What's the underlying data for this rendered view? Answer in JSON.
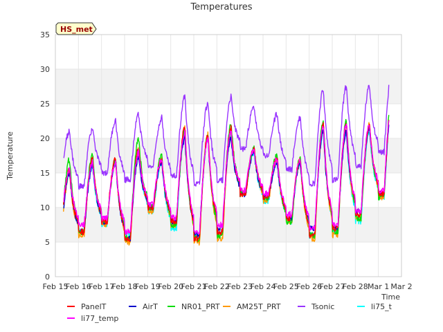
{
  "chart_data": {
    "type": "line",
    "title": "Temperatures",
    "xlabel": "Time",
    "ylabel": "Temperature",
    "badge": "HS_met",
    "xlim": [
      "2025-02-15",
      "2025-03-02"
    ],
    "ylim": [
      0,
      35
    ],
    "xticks": [
      "Feb 15",
      "Feb 16",
      "Feb 17",
      "Feb 18",
      "Feb 19",
      "Feb 20",
      "Feb 21",
      "Feb 22",
      "Feb 23",
      "Feb 24",
      "Feb 25",
      "Feb 26",
      "Feb 27",
      "Feb 28",
      "Mar 1",
      "Mar 2"
    ],
    "yticks": [
      0,
      5,
      10,
      15,
      20,
      25,
      30,
      35
    ],
    "grid_bands": true,
    "legend_position": "bottom",
    "series": [
      {
        "name": "PanelT",
        "color": "#ff0000",
        "daily_max": [
          15.5,
          17.0,
          17.0,
          18.5,
          17.0,
          21.5,
          20.5,
          21.5,
          18.5,
          17.0,
          17.0,
          22.0,
          22.0,
          22.0,
          26.0
        ],
        "daily_min": [
          6.5,
          6.5,
          8.0,
          5.5,
          10.0,
          8.0,
          5.5,
          6.5,
          12.0,
          11.5,
          8.5,
          6.0,
          7.0,
          9.0,
          12.0
        ]
      },
      {
        "name": "AirT",
        "color": "#0000cc",
        "daily_max": [
          15.0,
          16.0,
          16.5,
          17.5,
          16.5,
          20.0,
          20.0,
          20.0,
          18.0,
          16.5,
          16.5,
          21.0,
          21.0,
          21.5,
          25.0
        ],
        "daily_min": [
          6.0,
          6.5,
          8.0,
          5.5,
          10.0,
          8.0,
          6.0,
          7.0,
          12.0,
          11.5,
          8.5,
          7.0,
          7.0,
          9.5,
          12.0
        ]
      },
      {
        "name": "NR01_PRT",
        "color": "#00dd00",
        "daily_max": [
          17.0,
          17.5,
          17.0,
          20.0,
          17.5,
          21.0,
          20.5,
          22.0,
          18.5,
          17.5,
          17.0,
          22.5,
          22.5,
          22.0,
          27.0
        ],
        "daily_min": [
          5.5,
          6.5,
          8.0,
          5.5,
          10.0,
          7.5,
          5.5,
          6.0,
          12.0,
          11.5,
          8.0,
          6.0,
          6.5,
          8.5,
          11.5
        ]
      },
      {
        "name": "AM25T_PRT",
        "color": "#ff9900",
        "daily_max": [
          15.0,
          17.0,
          17.0,
          18.5,
          17.0,
          21.5,
          20.5,
          21.0,
          18.5,
          17.0,
          17.0,
          22.0,
          22.0,
          22.0,
          26.0
        ],
        "daily_min": [
          5.0,
          6.0,
          7.5,
          5.0,
          9.5,
          7.5,
          5.0,
          5.5,
          12.0,
          11.0,
          8.0,
          5.5,
          6.0,
          8.5,
          11.5
        ]
      },
      {
        "name": "Tsonic",
        "color": "#9933ff",
        "daily_max": [
          21.0,
          21.5,
          22.5,
          23.5,
          23.0,
          26.0,
          25.0,
          26.0,
          24.5,
          23.5,
          23.0,
          27.0,
          27.5,
          27.5,
          30.5
        ],
        "daily_min": [
          14.0,
          13.0,
          15.0,
          14.0,
          16.0,
          14.5,
          13.5,
          14.0,
          18.5,
          17.5,
          15.5,
          13.5,
          14.0,
          16.0,
          18.0
        ]
      },
      {
        "name": "li75_t",
        "color": "#00ffff",
        "daily_max": [
          15.0,
          16.0,
          16.5,
          17.5,
          16.5,
          20.5,
          20.0,
          20.5,
          18.0,
          16.5,
          16.5,
          21.0,
          21.0,
          21.0,
          25.0
        ],
        "daily_min": [
          5.5,
          6.5,
          7.5,
          6.0,
          9.5,
          7.0,
          6.0,
          6.5,
          12.0,
          11.0,
          8.0,
          6.0,
          6.5,
          8.0,
          11.5
        ]
      },
      {
        "name": "li77_temp",
        "color": "#ff00ff",
        "daily_max": [
          15.5,
          16.5,
          16.5,
          18.0,
          17.0,
          21.0,
          20.0,
          21.0,
          18.5,
          17.0,
          17.0,
          22.0,
          22.0,
          22.0,
          26.5
        ],
        "daily_min": [
          7.0,
          7.5,
          8.5,
          6.5,
          10.5,
          8.5,
          6.5,
          7.5,
          12.5,
          12.0,
          9.0,
          7.0,
          7.5,
          9.5,
          12.5
        ]
      }
    ]
  }
}
